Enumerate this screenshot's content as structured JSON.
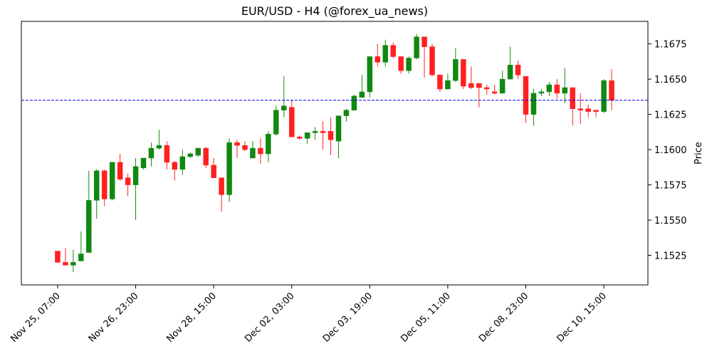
{
  "chart_data": {
    "type": "candlestick",
    "title": "EUR/USD - H4 (@forex_ua_news)",
    "y_label": "Price",
    "categories": [
      "Nov 25, 07:00",
      null,
      null,
      null,
      null,
      null,
      null,
      null,
      null,
      null,
      "Nov 26, 23:00",
      null,
      null,
      null,
      null,
      null,
      null,
      null,
      null,
      null,
      "Nov 28, 15:00",
      null,
      null,
      null,
      null,
      null,
      null,
      null,
      null,
      null,
      "Dec 02, 03:00",
      null,
      null,
      null,
      null,
      null,
      null,
      null,
      null,
      null,
      "Dec 03, 19:00",
      null,
      null,
      null,
      null,
      null,
      null,
      null,
      null,
      null,
      "Dec 05, 11:00",
      null,
      null,
      null,
      null,
      null,
      null,
      null,
      null,
      null,
      "Dec 08, 23:00",
      null,
      null,
      null,
      null,
      null,
      null,
      null,
      null,
      null,
      "Dec 10, 15:00",
      null
    ],
    "open": [
      1.1528,
      1.152,
      1.1518,
      1.1521,
      1.1527,
      1.1564,
      1.1585,
      1.1565,
      1.1591,
      1.158,
      1.1575,
      1.1587,
      1.1594,
      1.1601,
      1.1603,
      1.1591,
      1.1586,
      1.1595,
      1.1596,
      1.1601,
      1.1589,
      1.158,
      1.1568,
      1.1605,
      1.1603,
      1.1594,
      1.1601,
      1.1597,
      1.1611,
      1.1628,
      1.163,
      1.1609,
      1.1608,
      1.1612,
      1.1613,
      1.1613,
      1.1606,
      1.1624,
      1.1628,
      1.1637,
      1.1641,
      1.1666,
      1.1662,
      1.1674,
      1.1666,
      1.1656,
      1.1665,
      1.168,
      1.1673,
      1.1653,
      1.1643,
      1.1649,
      1.1664,
      1.1647,
      1.1647,
      1.1644,
      1.1641,
      1.164,
      1.165,
      1.166,
      1.1652,
      1.1625,
      1.164,
      1.1641,
      1.1646,
      1.164,
      1.1644,
      1.1629,
      1.1629,
      1.1628,
      1.1627,
      1.1649
    ],
    "high": [
      1.1528,
      1.153,
      1.1529,
      1.1542,
      1.1585,
      1.1586,
      1.1586,
      1.1591,
      1.1597,
      1.1583,
      1.1594,
      1.1594,
      1.1605,
      1.1614,
      1.1606,
      1.1592,
      1.16,
      1.1598,
      1.1601,
      1.1602,
      1.1594,
      1.158,
      1.1608,
      1.1607,
      1.1606,
      1.1606,
      1.1608,
      1.1613,
      1.1631,
      1.1652,
      1.1635,
      1.161,
      1.1612,
      1.1616,
      1.162,
      1.1623,
      1.1624,
      1.1629,
      1.1639,
      1.1653,
      1.1666,
      1.1675,
      1.1678,
      1.1676,
      1.1666,
      1.1666,
      1.1682,
      1.168,
      1.1675,
      1.1653,
      1.1654,
      1.1672,
      1.1664,
      1.1659,
      1.1647,
      1.1646,
      1.1646,
      1.1656,
      1.1673,
      1.1663,
      1.1652,
      1.1643,
      1.1643,
      1.1648,
      1.165,
      1.1658,
      1.1644,
      1.164,
      1.1632,
      1.1628,
      1.165,
      1.1657
    ],
    "low": [
      1.152,
      1.1518,
      1.1513,
      1.1521,
      1.1527,
      1.1551,
      1.156,
      1.1564,
      1.1578,
      1.1567,
      1.155,
      1.1586,
      1.1588,
      1.16,
      1.1586,
      1.1578,
      1.1582,
      1.1594,
      1.1595,
      1.1587,
      1.158,
      1.1556,
      1.1563,
      1.1594,
      1.1599,
      1.1594,
      1.159,
      1.1591,
      1.161,
      1.1623,
      1.1609,
      1.1607,
      1.1604,
      1.1607,
      1.16,
      1.1596,
      1.1594,
      1.162,
      1.1628,
      1.1637,
      1.1637,
      1.1659,
      1.1659,
      1.1665,
      1.1654,
      1.1654,
      1.1664,
      1.1651,
      1.1652,
      1.1641,
      1.1643,
      1.1648,
      1.1643,
      1.1643,
      1.163,
      1.1639,
      1.1639,
      1.164,
      1.165,
      1.165,
      1.1619,
      1.1617,
      1.1638,
      1.1638,
      1.1636,
      1.1633,
      1.1617,
      1.1618,
      1.1623,
      1.1623,
      1.1626,
      1.1628
    ],
    "close": [
      1.152,
      1.1518,
      1.152,
      1.1526,
      1.1564,
      1.1585,
      1.1565,
      1.1591,
      1.1579,
      1.1575,
      1.1588,
      1.1594,
      1.1601,
      1.1603,
      1.1591,
      1.1586,
      1.1595,
      1.1597,
      1.1601,
      1.1589,
      1.158,
      1.1568,
      1.1605,
      1.1603,
      1.16,
      1.1601,
      1.1597,
      1.1611,
      1.1628,
      1.1631,
      1.1609,
      1.1608,
      1.1612,
      1.1613,
      1.1612,
      1.1607,
      1.1624,
      1.1628,
      1.1638,
      1.1641,
      1.1666,
      1.1662,
      1.1674,
      1.1666,
      1.1656,
      1.1665,
      1.168,
      1.1673,
      1.1653,
      1.1643,
      1.1649,
      1.1664,
      1.1645,
      1.1644,
      1.1644,
      1.1643,
      1.164,
      1.165,
      1.166,
      1.1653,
      1.1625,
      1.164,
      1.1641,
      1.1646,
      1.164,
      1.1644,
      1.1629,
      1.1628,
      1.1627,
      1.1627,
      1.1649,
      1.1635
    ],
    "up_color": "#118811",
    "down_color": "#ff2020",
    "hline": 1.1635,
    "hline_color": "#0000ee",
    "ylim": [
      1.1504,
      1.1691
    ],
    "yticks": [
      1.1525,
      {
        "value": 1.155,
        "label": "1.1550"
      },
      1.1575,
      {
        "value": 1.16,
        "label": "1.1600"
      },
      1.1625,
      {
        "value": 1.165,
        "label": "1.1650"
      },
      1.1675
    ]
  }
}
